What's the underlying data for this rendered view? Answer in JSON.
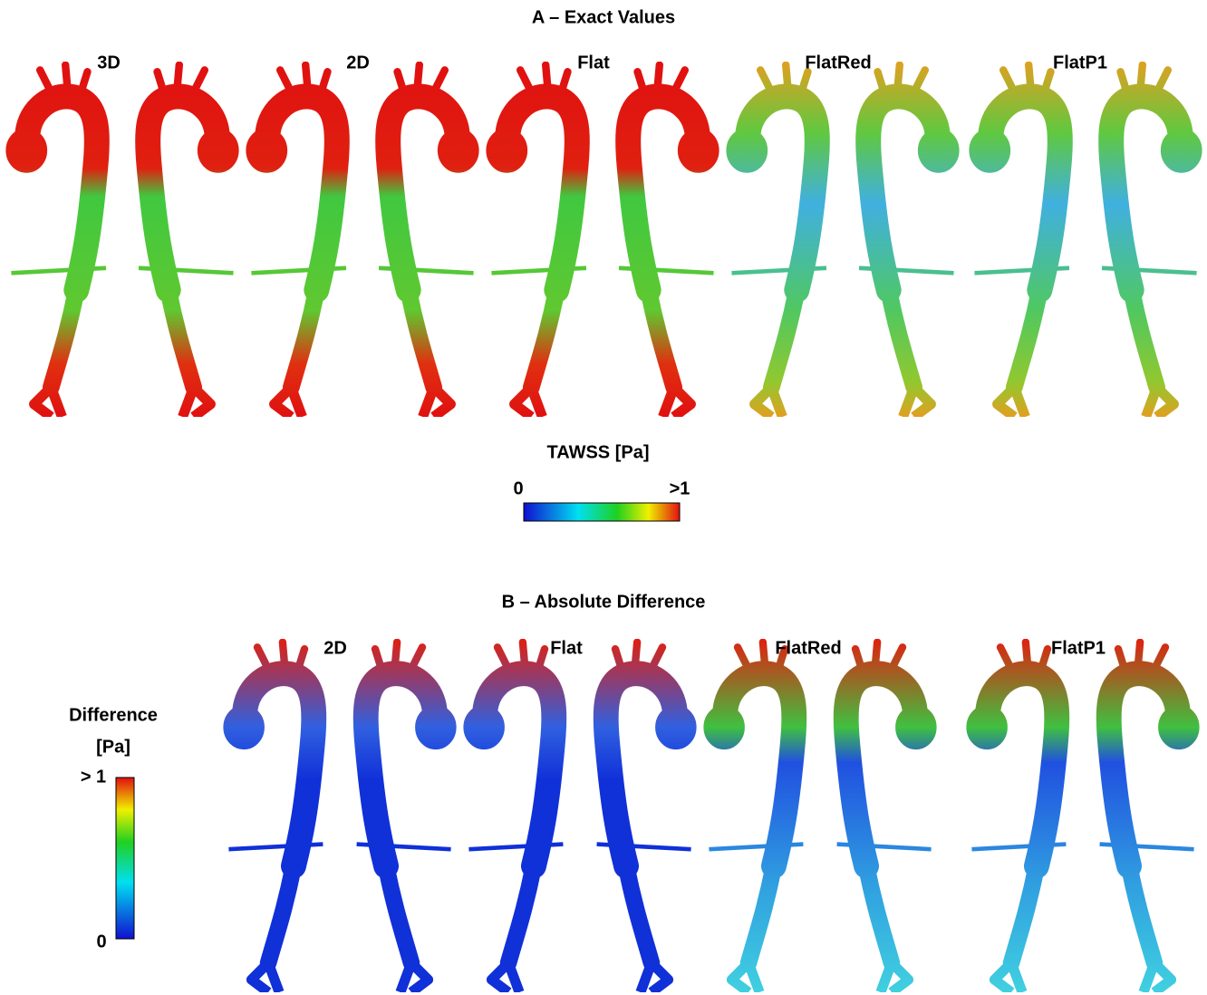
{
  "panel_a": {
    "title": "A – Exact Values",
    "labels": [
      "3D",
      "2D",
      "Flat",
      "FlatRed",
      "FlatP1"
    ],
    "colorbar": {
      "title": "TAWSS [Pa]",
      "min_label": "0",
      "max_label": ">1"
    }
  },
  "panel_b": {
    "title": "B – Absolute Difference",
    "labels": [
      "2D",
      "Flat",
      "FlatRed",
      "FlatP1"
    ],
    "colorbar": {
      "title_line1": "Difference",
      "title_line2": "[Pa]",
      "max_label": "> 1",
      "min_label": "0"
    }
  }
}
